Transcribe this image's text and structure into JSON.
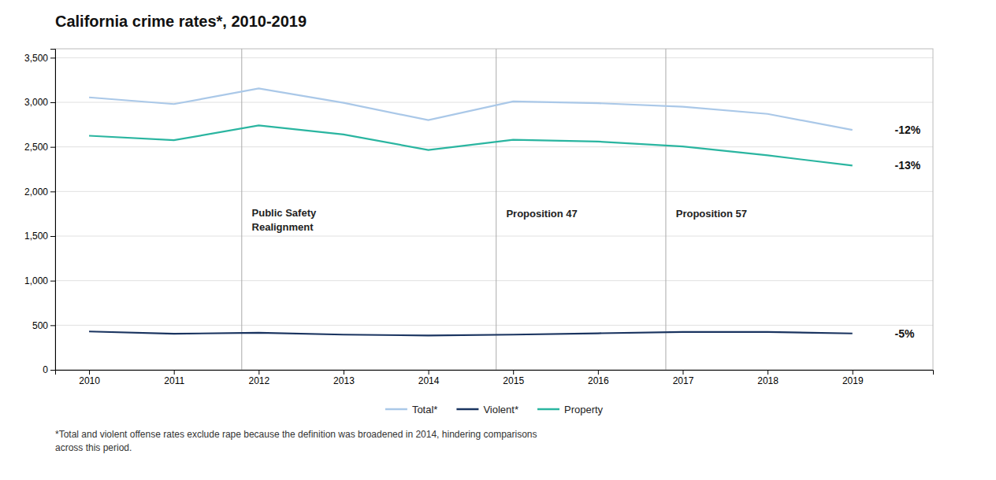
{
  "chart_data": {
    "type": "line",
    "title": "California crime rates*, 2010-2019",
    "footnote": "*Total and violent offense rates exclude rape because the definition was broadened in 2014, hindering comparisons\nacross this period.",
    "x": [
      2010,
      2011,
      2012,
      2013,
      2014,
      2015,
      2016,
      2017,
      2018,
      2019
    ],
    "series": [
      {
        "name": "Total*",
        "color": "#aac8e8",
        "values": [
          3055,
          2980,
          3155,
          2995,
          2800,
          3010,
          2990,
          2950,
          2870,
          2690
        ]
      },
      {
        "name": "Violent*",
        "color": "#1a3460",
        "values": [
          430,
          405,
          415,
          395,
          385,
          395,
          410,
          425,
          425,
          408
        ]
      },
      {
        "name": "Property",
        "color": "#2ab5a0",
        "values": [
          2625,
          2575,
          2740,
          2640,
          2465,
          2580,
          2560,
          2505,
          2405,
          2290
        ]
      }
    ],
    "vlines": [
      2011.8,
      2014.8,
      2016.8
    ],
    "annotations": [
      {
        "x": 2011.9,
        "y": 1680,
        "text": "Public Safety\nRealignment"
      },
      {
        "x": 2014.9,
        "y": 1750,
        "text": "Proposition 47"
      },
      {
        "x": 2016.9,
        "y": 1750,
        "text": "Proposition 57"
      }
    ],
    "end_labels": [
      {
        "text": "-12%",
        "x": 2019.5,
        "y": 2690,
        "color": "#111111"
      },
      {
        "text": "-13%",
        "x": 2019.5,
        "y": 2290,
        "color": "#111111"
      },
      {
        "text": "-5%",
        "x": 2019.5,
        "y": 408,
        "color": "#111111"
      }
    ],
    "xlim": [
      2009.6,
      2019.95
    ],
    "xticks": [
      2010,
      2011,
      2012,
      2013,
      2014,
      2015,
      2016,
      2017,
      2018,
      2019
    ],
    "ylim": [
      0,
      3600
    ],
    "yticks": [
      0,
      500,
      {
        "value": 1000,
        "label": "1,000"
      },
      {
        "value": 1500,
        "label": "1,500"
      },
      {
        "value": 2000,
        "label": "2,000"
      },
      {
        "value": 2500,
        "label": "2,500"
      },
      {
        "value": 3000,
        "label": "3,000"
      },
      {
        "value": 3500,
        "label": "3,500"
      }
    ],
    "grid": true,
    "legend": "bottom"
  }
}
